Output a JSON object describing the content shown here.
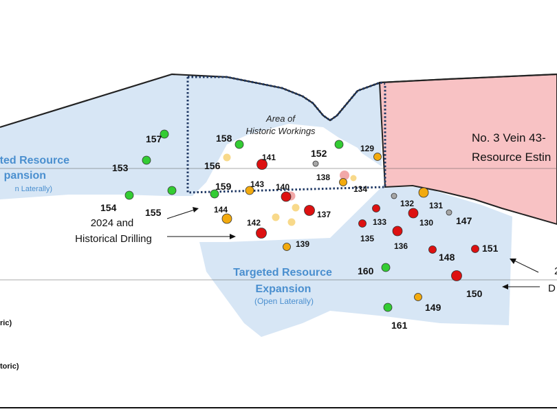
{
  "colors": {
    "expansion_fill": "#d7e6f5",
    "resource_fill": "#f8c2c4",
    "hole_green": "#33cc33",
    "hole_orange": "#f2aa0f",
    "hole_red": "#dd1111",
    "hole_grey": "#a6a6a6",
    "hole_faded_orange": "#f8d98a",
    "hole_faded_red": "#f2a8a8",
    "text_blue": "#4a8fcf"
  },
  "resource_block": {
    "line1": "No. 3 Vein 43-",
    "line2": "Resource Estin"
  },
  "area_of_workings": {
    "line1": "Area of",
    "line2": "Historic Workings"
  },
  "left_expansion": {
    "line1": "ted Resource",
    "line2": "pansion",
    "line3": "n Laterally)"
  },
  "lower_expansion": {
    "line1": "Targeted Resource",
    "line2": "Expansion",
    "line3": "(Open Laterally)"
  },
  "callout_drilling": {
    "line1": "2024 and",
    "line2": "Historical Drilling"
  },
  "right_callout": {
    "line1": "2",
    "line2": "D"
  },
  "legend_fragments": {
    "item1": "ric)",
    "item2": "toric)"
  },
  "drill_holes": [
    {
      "id": "157",
      "status": "green"
    },
    {
      "id": "158",
      "status": "green"
    },
    {
      "id": "156",
      "status": "faded_orange"
    },
    {
      "id": "153",
      "status": "green"
    },
    {
      "id": "154",
      "status": "green"
    },
    {
      "id": "155",
      "status": "green"
    },
    {
      "id": "159",
      "status": "green"
    },
    {
      "id": "141",
      "status": "red"
    },
    {
      "id": "143",
      "status": "orange"
    },
    {
      "id": "140",
      "status": "red"
    },
    {
      "id": "144",
      "status": "orange"
    },
    {
      "id": "142",
      "status": "red"
    },
    {
      "id": "139",
      "status": "orange"
    },
    {
      "id": "137",
      "status": "red"
    },
    {
      "id": "152",
      "status": "green"
    },
    {
      "id": "138",
      "status": "grey"
    },
    {
      "id": "134",
      "status": "orange"
    },
    {
      "id": "129",
      "status": "orange"
    },
    {
      "id": "133",
      "status": "red"
    },
    {
      "id": "135",
      "status": "red"
    },
    {
      "id": "136",
      "status": "red"
    },
    {
      "id": "132",
      "status": "grey"
    },
    {
      "id": "131",
      "status": "orange"
    },
    {
      "id": "130",
      "status": "red"
    },
    {
      "id": "147",
      "status": "grey"
    },
    {
      "id": "148",
      "status": "red"
    },
    {
      "id": "151",
      "status": "red"
    },
    {
      "id": "160",
      "status": "green"
    },
    {
      "id": "150",
      "status": "red"
    },
    {
      "id": "149",
      "status": "orange"
    },
    {
      "id": "161",
      "status": "green"
    }
  ]
}
